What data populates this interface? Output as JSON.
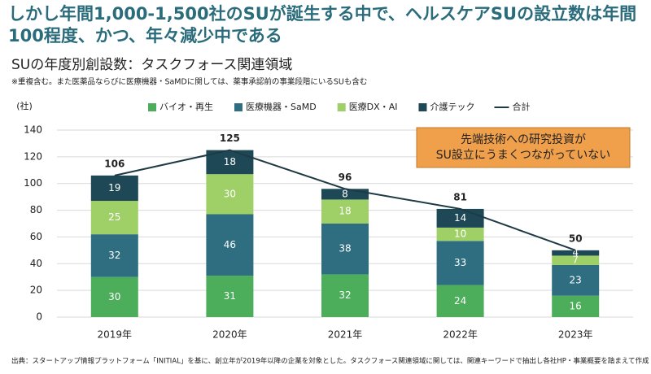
{
  "chart_data": {
    "type": "bar",
    "stacked": true,
    "title": "しかし年間1,000-1,500社のSUが誕生する中で、ヘルスケアSUの設立数は年間100程度、かつ、年々減少中である",
    "subtitle": "SUの年度別創設数：タスクフォース関連領域",
    "note": "※重複含む。また医薬品ならびに医療機器・SaMDに関しては、薬事承認前の事業段階にいるSUも含む",
    "y_label": "(社)",
    "categories": [
      "2019年",
      "2020年",
      "2021年",
      "2022年",
      "2023年"
    ],
    "series": [
      {
        "name": "バイオ・再生",
        "type": "bar",
        "color": "#4cae5b",
        "values": [
          30,
          31,
          32,
          24,
          16
        ]
      },
      {
        "name": "医療機器・SaMD",
        "type": "bar",
        "color": "#2f6d80",
        "values": [
          32,
          46,
          38,
          33,
          23
        ]
      },
      {
        "name": "医療DX・AI",
        "type": "bar",
        "color": "#9fd068",
        "values": [
          25,
          30,
          18,
          10,
          7
        ]
      },
      {
        "name": "介護テック",
        "type": "bar",
        "color": "#1e4855",
        "values": [
          19,
          18,
          8,
          14,
          4
        ]
      },
      {
        "name": "合計",
        "type": "line",
        "color": "#1e3a44",
        "values": [
          106,
          125,
          96,
          81,
          50
        ]
      }
    ],
    "ylim": [
      0,
      140
    ],
    "yticks": [
      0,
      20,
      40,
      60,
      80,
      100,
      120,
      140
    ],
    "grid": true,
    "annotation": [
      "先端技術への研究投資が",
      "SU設立にうまくつながっていない"
    ],
    "source": "出典：スタートアップ情報プラットフォーム「INITIAL」を基に、創立年が2019年以降の企業を対象とした。タスクフォース関連領域に関しては、関連キーワードで抽出し各社HP・事業概要を踏まえて作成"
  }
}
